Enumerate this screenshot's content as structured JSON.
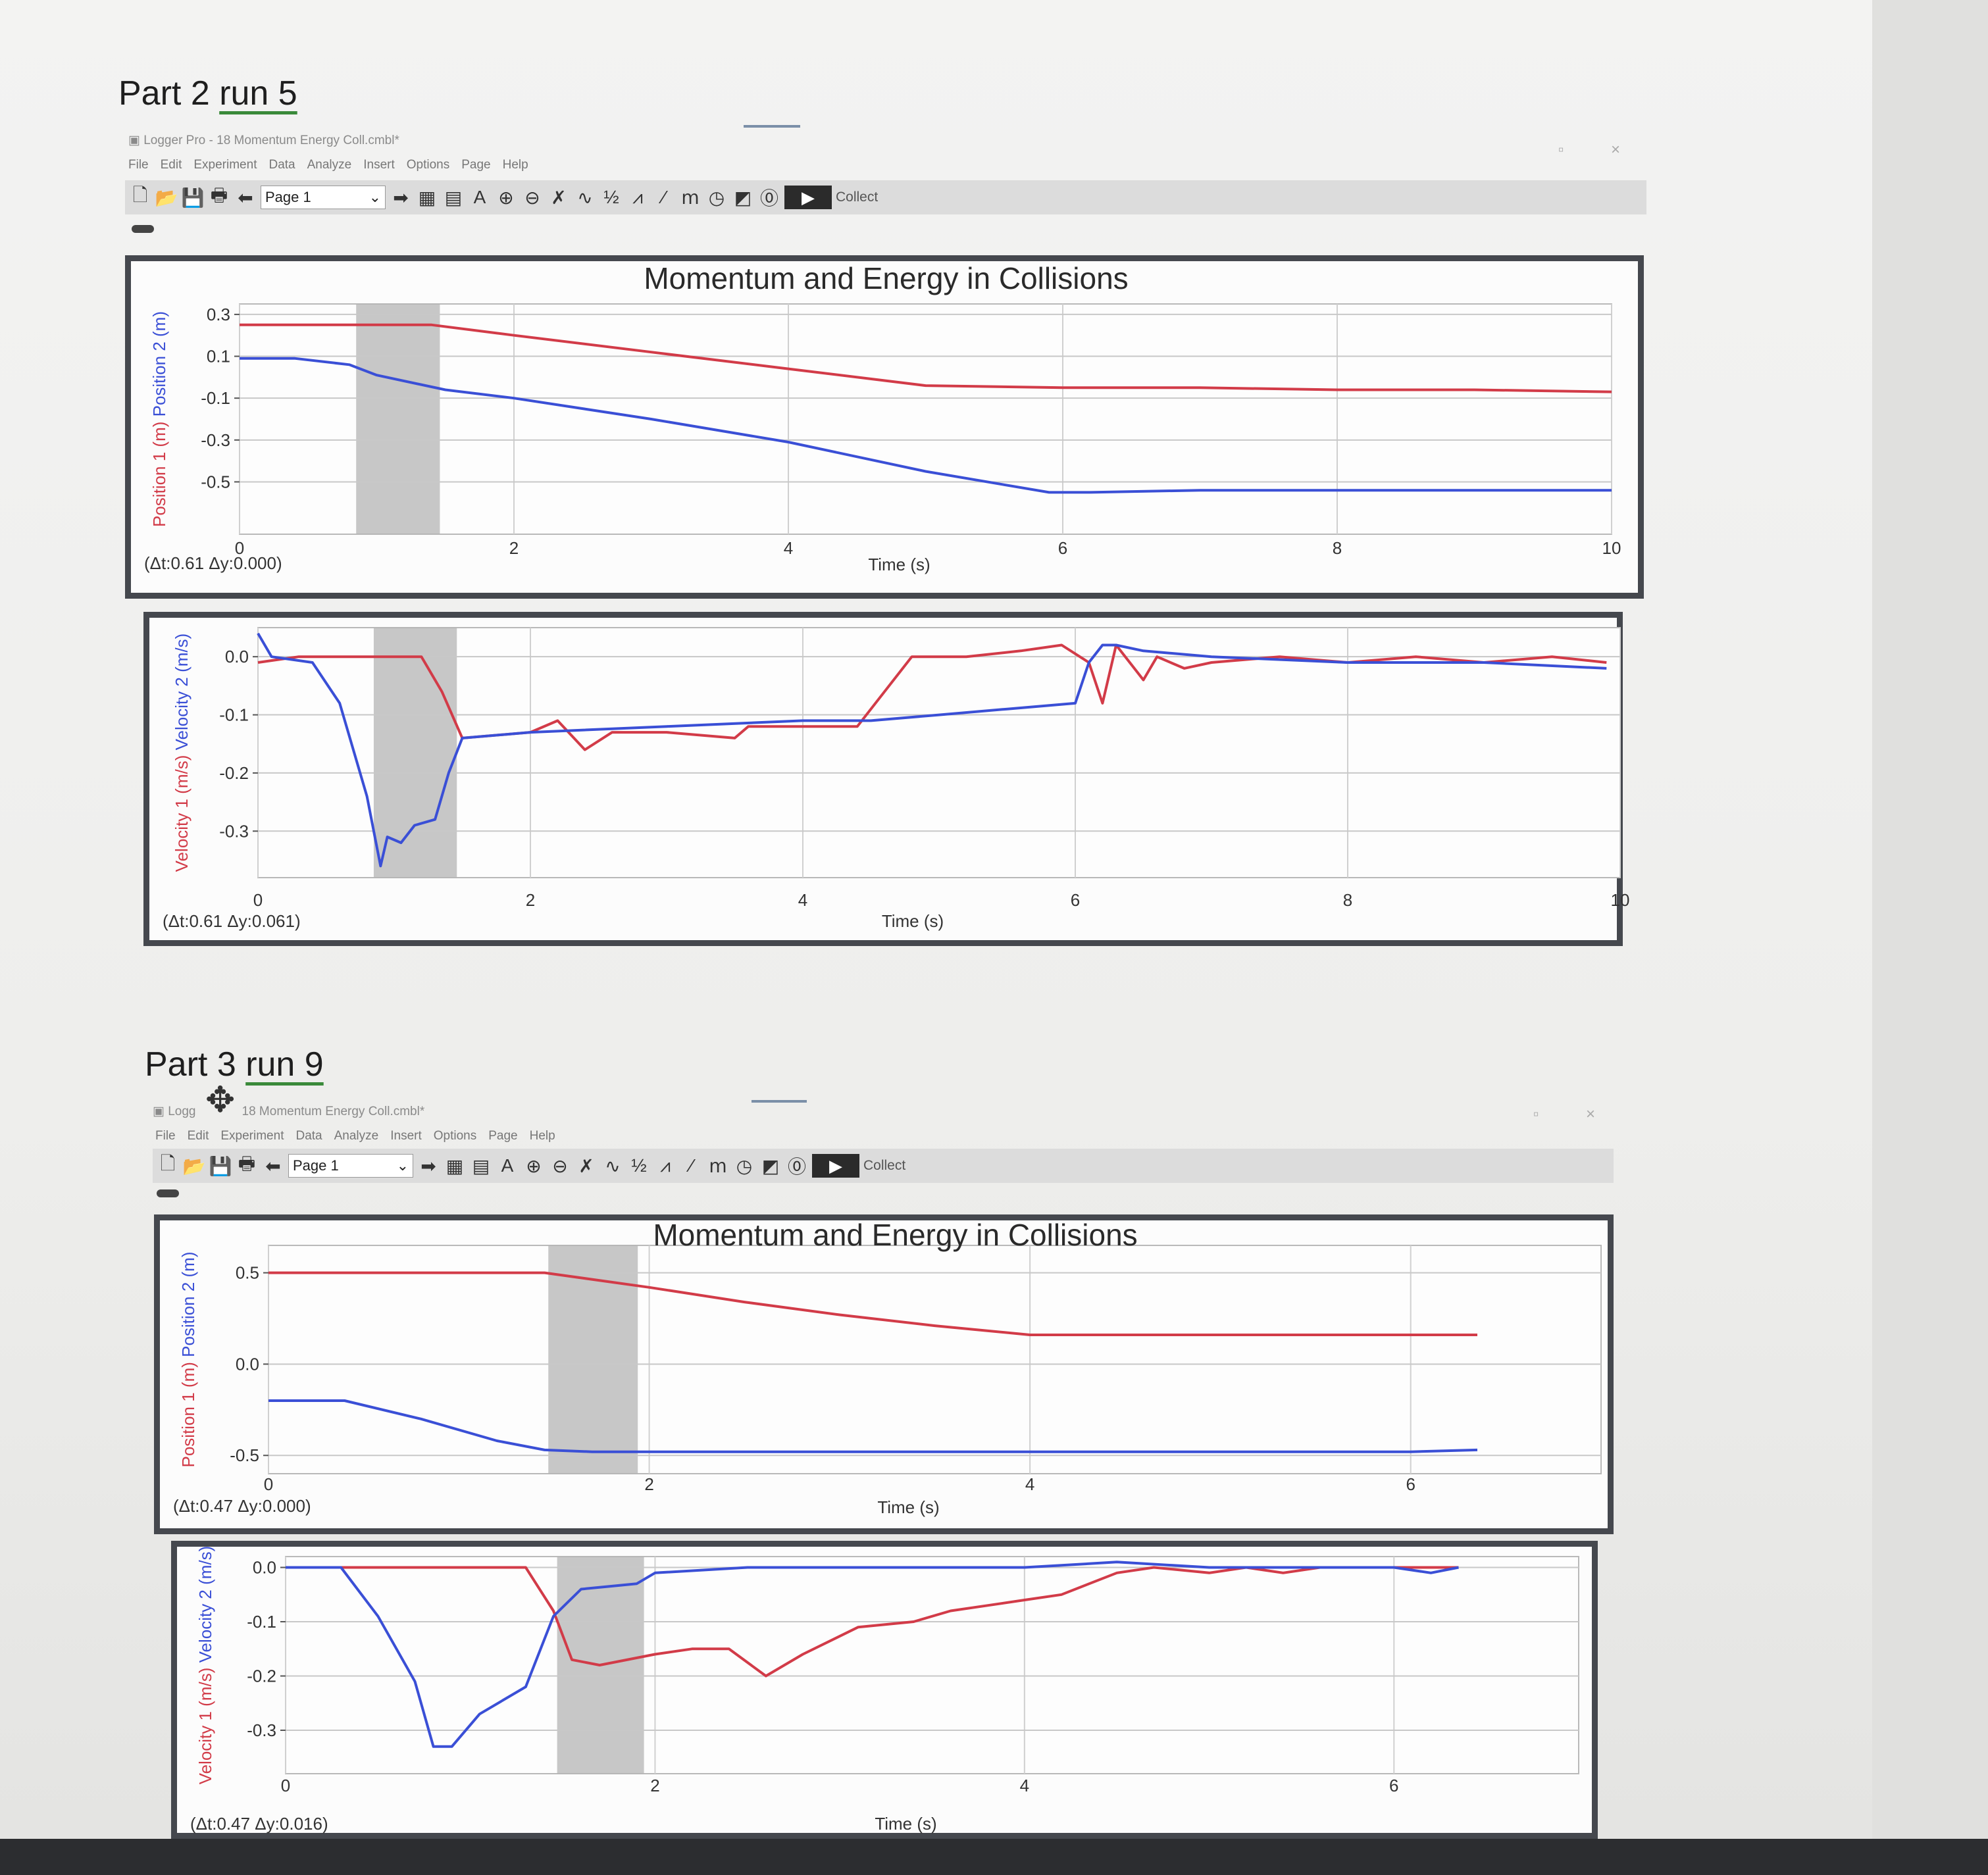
{
  "screenshot1": {
    "title_prefix": "Part 2 ",
    "title_run": "run 5",
    "app_title": "Logger Pro - 18 Momentum Energy Coll.cmbl*",
    "menu": [
      "File",
      "Edit",
      "Experiment",
      "Data",
      "Analyze",
      "Insert",
      "Options",
      "Page",
      "Help"
    ],
    "page_select": "Page 1",
    "collect_label": "Collect",
    "icons": [
      "new-file-icon",
      "open-folder-icon",
      "save-icon",
      "print-icon",
      "back-arrow-icon",
      "forward-arrow-icon",
      "table-icon",
      "calculator-icon",
      "autoscale-icon",
      "zoom-in-icon",
      "zoom-out-icon",
      "examine-icon",
      "tangent-icon",
      "integral-icon",
      "stats-icon",
      "linear-fit-icon",
      "curve-fit-icon",
      "clock-icon",
      "graph-icon",
      "zero-icon",
      "play-icon"
    ]
  },
  "screenshot2": {
    "title_prefix": "Part 3 ",
    "title_run": "run 9",
    "app_title": "Logg",
    "app_title_rest": "18 Momentum Energy Coll.cmbl*",
    "menu": [
      "File",
      "Edit",
      "Experiment",
      "Data",
      "Analyze",
      "Insert",
      "Options",
      "Page",
      "Help"
    ],
    "page_select": "Page 1",
    "collect_label": "Collect"
  },
  "colors": {
    "series1": "#3a4fd6",
    "series2": "#d23b48",
    "selection": "#b4b4b4",
    "frame": "#45484e"
  },
  "chart_data": [
    {
      "id": "run5-position",
      "type": "line",
      "title": "Momentum and Energy in Collisions",
      "xlabel": "Time (s)",
      "ylabel_parts": [
        "Position 1 (m)",
        "Position 2 (m)"
      ],
      "xlim": [
        0,
        10
      ],
      "ylim": [
        -0.75,
        0.35
      ],
      "xticks": [
        0,
        2,
        4,
        6,
        8,
        10
      ],
      "yticks": [
        0.3,
        0.1,
        -0.1,
        -0.3,
        -0.5
      ],
      "ytick_labels": [
        "0.3",
        "0.1",
        "-0.1",
        "-0.3",
        "-0.5"
      ],
      "readout": "(Δt:0.61 Δy:0.000)",
      "selection": [
        0.85,
        1.46
      ],
      "series": [
        {
          "color": "series2",
          "x": [
            0,
            1.4,
            2,
            3,
            4,
            5,
            6,
            7,
            8,
            9,
            10
          ],
          "y": [
            0.25,
            0.25,
            0.2,
            0.12,
            0.04,
            -0.04,
            -0.05,
            -0.05,
            -0.06,
            -0.06,
            -0.07
          ]
        },
        {
          "color": "series1",
          "x": [
            0,
            0.4,
            0.8,
            1,
            1.5,
            2,
            3,
            4,
            5,
            5.9,
            6.2,
            7,
            8,
            9,
            10
          ],
          "y": [
            0.09,
            0.09,
            0.06,
            0.01,
            -0.06,
            -0.1,
            -0.2,
            -0.31,
            -0.45,
            -0.55,
            -0.55,
            -0.54,
            -0.54,
            -0.54,
            -0.54
          ]
        }
      ]
    },
    {
      "id": "run5-velocity",
      "type": "line",
      "xlabel": "Time (s)",
      "ylabel_parts": [
        "Velocity 1 (m/s)",
        "Velocity 2 (m/s)"
      ],
      "xlim": [
        0,
        10
      ],
      "ylim": [
        -0.38,
        0.05
      ],
      "xticks": [
        0,
        2,
        4,
        6,
        8,
        10
      ],
      "yticks": [
        0.0,
        -0.1,
        -0.2,
        -0.3
      ],
      "ytick_labels": [
        "0.0",
        "-0.1",
        "-0.2",
        "-0.3"
      ],
      "readout": "(Δt:0.61 Δy:0.061)",
      "selection": [
        0.85,
        1.46
      ],
      "series": [
        {
          "color": "series2",
          "x": [
            0,
            0.3,
            1.2,
            1.35,
            1.5,
            2,
            2.2,
            2.4,
            2.6,
            3,
            3.5,
            3.6,
            4,
            4.4,
            4.6,
            4.8,
            5.2,
            5.6,
            5.9,
            6.1,
            6.2,
            6.3,
            6.5,
            6.6,
            6.8,
            7,
            7.5,
            8,
            8.5,
            9,
            9.5,
            9.9
          ],
          "y": [
            -0.01,
            0.0,
            0.0,
            -0.06,
            -0.14,
            -0.13,
            -0.11,
            -0.16,
            -0.13,
            -0.13,
            -0.14,
            -0.12,
            -0.12,
            -0.12,
            -0.06,
            0.0,
            0.0,
            0.01,
            0.02,
            -0.01,
            -0.08,
            0.02,
            -0.04,
            0.0,
            -0.02,
            -0.01,
            0.0,
            -0.01,
            0.0,
            -0.01,
            0.0,
            -0.01
          ]
        },
        {
          "color": "series1",
          "x": [
            0,
            0.1,
            0.4,
            0.6,
            0.8,
            0.9,
            0.95,
            1.05,
            1.15,
            1.3,
            1.4,
            1.5,
            2,
            3,
            4,
            4.5,
            5,
            5.5,
            6,
            6.1,
            6.2,
            6.3,
            6.5,
            7,
            8,
            9,
            9.9
          ],
          "y": [
            0.04,
            0.0,
            -0.01,
            -0.08,
            -0.24,
            -0.36,
            -0.31,
            -0.32,
            -0.29,
            -0.28,
            -0.2,
            -0.14,
            -0.13,
            -0.12,
            -0.11,
            -0.11,
            -0.1,
            -0.09,
            -0.08,
            -0.01,
            0.02,
            0.02,
            0.01,
            0.0,
            -0.01,
            -0.01,
            -0.02
          ]
        }
      ]
    },
    {
      "id": "run9-position",
      "type": "line",
      "title": "Momentum and Energy in Collisions",
      "xlabel": "Time (s)",
      "ylabel_parts": [
        "Position 1 (m)",
        "Position 2 (m)"
      ],
      "xlim": [
        0,
        7
      ],
      "ylim": [
        -0.6,
        0.65
      ],
      "xticks": [
        0,
        2,
        4,
        6
      ],
      "yticks": [
        0.5,
        0.0,
        -0.5
      ],
      "ytick_labels": [
        "0.5",
        "0.0",
        "-0.5"
      ],
      "readout": "(Δt:0.47 Δy:0.000)",
      "selection": [
        1.47,
        1.94
      ],
      "series": [
        {
          "color": "series2",
          "x": [
            0,
            1.45,
            2,
            2.5,
            3,
            3.5,
            4,
            4.5,
            5,
            6,
            6.35
          ],
          "y": [
            0.5,
            0.5,
            0.42,
            0.34,
            0.27,
            0.21,
            0.16,
            0.16,
            0.16,
            0.16,
            0.16
          ]
        },
        {
          "color": "series1",
          "x": [
            0,
            0.4,
            0.8,
            1.2,
            1.45,
            1.7,
            2,
            3,
            4,
            5,
            6,
            6.35
          ],
          "y": [
            -0.2,
            -0.2,
            -0.3,
            -0.42,
            -0.47,
            -0.48,
            -0.48,
            -0.48,
            -0.48,
            -0.48,
            -0.48,
            -0.47
          ]
        }
      ]
    },
    {
      "id": "run9-velocity",
      "type": "line",
      "xlabel": "Time (s)",
      "ylabel_parts": [
        "Velocity 1 (m/s)",
        "Velocity 2 (m/s)"
      ],
      "xlim": [
        0,
        7
      ],
      "ylim": [
        -0.38,
        0.02
      ],
      "xticks": [
        0,
        2,
        4,
        6
      ],
      "yticks": [
        0.0,
        -0.1,
        -0.2,
        -0.3
      ],
      "ytick_labels": [
        "0.0",
        "-0.1",
        "-0.2",
        "-0.3"
      ],
      "readout": "(Δt:0.47 Δy:0.016)",
      "selection": [
        1.47,
        1.94
      ],
      "series": [
        {
          "color": "series2",
          "x": [
            0,
            1.3,
            1.45,
            1.55,
            1.7,
            2,
            2.2,
            2.4,
            2.6,
            2.8,
            3.1,
            3.4,
            3.6,
            3.8,
            4,
            4.2,
            4.5,
            4.7,
            5,
            5.2,
            5.4,
            5.6,
            6,
            6.2,
            6.35
          ],
          "y": [
            0.0,
            0.0,
            -0.08,
            -0.17,
            -0.18,
            -0.16,
            -0.15,
            -0.15,
            -0.2,
            -0.16,
            -0.11,
            -0.1,
            -0.08,
            -0.07,
            -0.06,
            -0.05,
            -0.01,
            0.0,
            -0.01,
            0.0,
            -0.01,
            0.0,
            0.0,
            0.0,
            0.0
          ]
        },
        {
          "color": "series1",
          "x": [
            0,
            0.3,
            0.5,
            0.7,
            0.8,
            0.9,
            1.05,
            1.3,
            1.45,
            1.6,
            1.9,
            2,
            2.5,
            3,
            3.5,
            4,
            4.5,
            5,
            5.5,
            6,
            6.2,
            6.35
          ],
          "y": [
            0.0,
            0.0,
            -0.09,
            -0.21,
            -0.33,
            -0.33,
            -0.27,
            -0.22,
            -0.09,
            -0.04,
            -0.03,
            -0.01,
            0.0,
            0.0,
            0.0,
            0.0,
            0.01,
            0.0,
            0.0,
            0.0,
            -0.01,
            0.0
          ]
        }
      ]
    }
  ]
}
